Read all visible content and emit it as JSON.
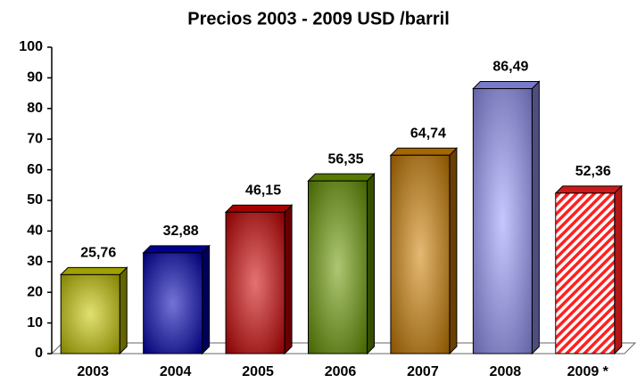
{
  "chart_data": {
    "type": "bar",
    "title": "Precios 2003 - 2009 USD /barril",
    "categories": [
      "2003",
      "2004",
      "2005",
      "2006",
      "2007",
      "2008",
      "2009 *"
    ],
    "values": [
      25.76,
      32.88,
      46.15,
      56.35,
      64.74,
      86.49,
      52.36
    ],
    "value_labels": [
      "25,76",
      "32,88",
      "46,15",
      "56,35",
      "64,74",
      "86,49",
      "52,36"
    ],
    "colors": [
      "#c8c800",
      "#0000b4",
      "#d00000",
      "#6a9a00",
      "#d08000",
      "#9999ff",
      "#ff2020"
    ],
    "hatched": [
      false,
      false,
      false,
      false,
      false,
      false,
      true
    ],
    "ylim": [
      0,
      100
    ],
    "yticks": [
      0,
      10,
      20,
      30,
      40,
      50,
      60,
      70,
      80,
      90,
      100
    ],
    "grid": false
  }
}
